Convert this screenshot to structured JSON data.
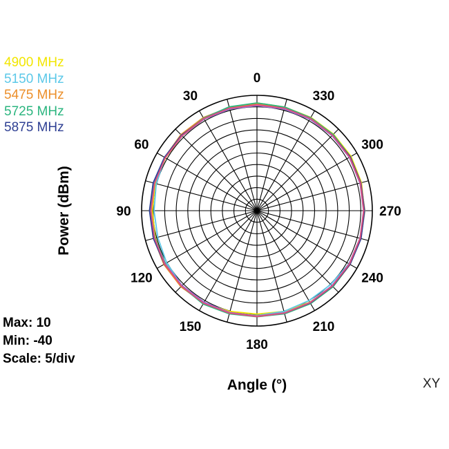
{
  "chart_data": {
    "type": "polar-line",
    "title": "",
    "xlabel": "Angle  (°)",
    "ylabel": "Power  (dBm)",
    "angle_ticks": [
      "0",
      "30",
      "60",
      "90",
      "120",
      "150",
      "180",
      "210",
      "240",
      "270",
      "300",
      "330"
    ],
    "angle_tick_values": [
      0,
      30,
      60,
      90,
      120,
      150,
      180,
      210,
      240,
      270,
      300,
      330
    ],
    "angle_direction": "counterclockwise",
    "zero_angle_at": "top",
    "radial_range": [
      -40,
      10
    ],
    "radial_step": 5,
    "grid": true,
    "legend_placement": "top-left",
    "angles": [
      0,
      15,
      30,
      45,
      60,
      75,
      90,
      105,
      120,
      135,
      150,
      165,
      180,
      195,
      210,
      225,
      240,
      255,
      270,
      285,
      300,
      315,
      330,
      345
    ],
    "series": [
      {
        "name": "4900 MHz",
        "color": "#f2e600",
        "values": [
          6.7,
          6.3,
          5.8,
          5.8,
          5.8,
          5.6,
          5.4,
          5.6,
          6.3,
          6.5,
          6.3,
          5.2,
          4.8,
          5.2,
          5.8,
          6.3,
          6.3,
          6.3,
          6.5,
          6.9,
          7.1,
          6.9,
          6.7,
          6.5
        ]
      },
      {
        "name": "5150 MHz",
        "color": "#5bc8e8",
        "values": [
          6.2,
          5.8,
          6.0,
          6.2,
          6.0,
          5.2,
          4.6,
          4.5,
          5.2,
          6.0,
          6.2,
          5.8,
          5.4,
          5.2,
          5.0,
          5.2,
          6.0,
          6.6,
          6.8,
          6.6,
          6.3,
          6.2,
          5.8,
          5.6
        ]
      },
      {
        "name": "5475 MHz",
        "color": "#ec8f2a",
        "values": [
          6.2,
          6.3,
          6.6,
          6.6,
          6.2,
          6.2,
          6.2,
          6.3,
          6.6,
          6.6,
          6.3,
          5.6,
          5.6,
          5.8,
          6.3,
          6.6,
          6.6,
          6.6,
          6.7,
          6.7,
          6.7,
          6.6,
          6.6,
          6.2
        ]
      },
      {
        "name": "5725 MHz",
        "color": "#2bb57f",
        "values": [
          6.7,
          6.6,
          6.3,
          6.0,
          6.0,
          6.2,
          6.0,
          5.8,
          5.8,
          6.3,
          6.7,
          6.3,
          6.0,
          6.3,
          6.5,
          6.6,
          6.5,
          6.3,
          6.5,
          6.6,
          6.7,
          6.7,
          6.5,
          6.5
        ]
      },
      {
        "name": "5875 MHz",
        "color": "#2e3f93",
        "values": [
          5.8,
          5.8,
          6.0,
          6.3,
          6.3,
          6.6,
          6.6,
          6.5,
          6.3,
          6.0,
          5.8,
          5.8,
          5.8,
          6.0,
          6.2,
          6.3,
          6.6,
          6.7,
          6.6,
          6.6,
          6.7,
          6.3,
          6.0,
          5.8
        ]
      },
      {
        "name": "",
        "color": "#9b6fd0",
        "values": [
          5.5,
          5.6,
          5.8,
          5.8,
          5.9,
          6.0,
          6.0,
          6.0,
          6.0,
          5.9,
          5.8,
          5.7,
          5.7,
          5.8,
          5.9,
          6.0,
          6.1,
          6.2,
          6.2,
          6.2,
          6.2,
          6.0,
          5.8,
          5.6
        ]
      },
      {
        "name": "",
        "color": "#e0507a",
        "values": [
          5.9,
          6.0,
          6.1,
          6.0,
          5.9,
          5.9,
          5.9,
          6.0,
          6.2,
          6.3,
          6.3,
          6.0,
          5.9,
          6.0,
          6.1,
          6.2,
          6.3,
          6.3,
          6.3,
          6.4,
          6.4,
          6.3,
          6.2,
          6.0
        ]
      }
    ],
    "max_label": "Max: 10",
    "min_label": "Min: -40",
    "scale_label": "Scale: 5/div",
    "plane_label": "XY"
  }
}
